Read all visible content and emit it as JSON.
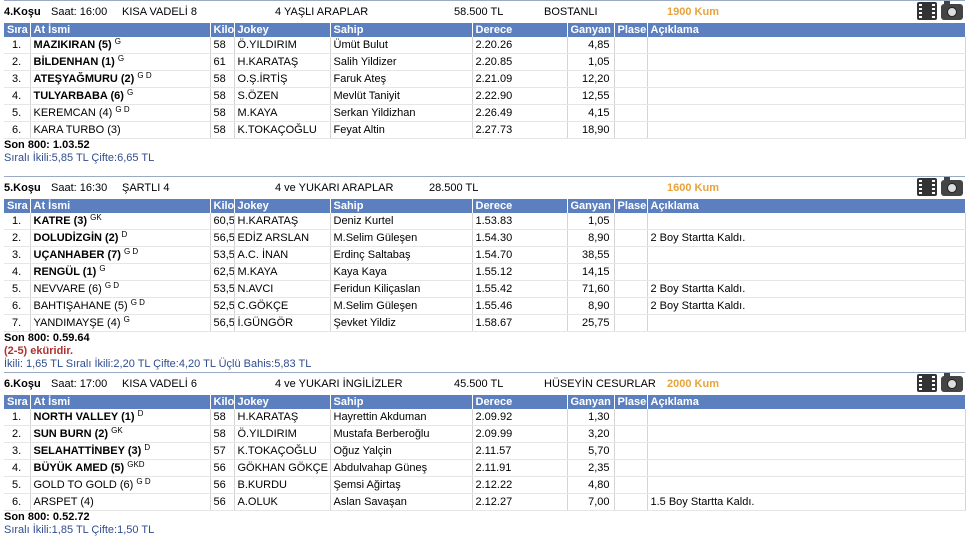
{
  "headers": [
    "Sıra",
    "At İsmi",
    "Kilo",
    "Jokey",
    "Sahip",
    "Derece",
    "Ganyan",
    "Plase",
    "Açıklama"
  ],
  "races": [
    {
      "title": "4.Koşu",
      "time": "Saat: 16:00",
      "type": "KISA VADELİ  8",
      "category": "4 YAŞLI ARAPLAR",
      "prize": "58.500 TL",
      "cup": "BOSTANLI",
      "distance": "1900 Kum",
      "rows": [
        {
          "no": "1.",
          "name": "MAZIKIRAN (5)",
          "sup": "G",
          "bold": true,
          "kilo": "58",
          "jockey": "Ö.YILDIRIM",
          "owner": "Ümüt Bulut",
          "time": "2.20.26",
          "ganyan": "4,85",
          "plase": "",
          "note": ""
        },
        {
          "no": "2.",
          "name": "BİLDENHAN (1)",
          "sup": "G",
          "bold": true,
          "kilo": "61",
          "jockey": "H.KARATAŞ",
          "owner": "Salih Yildizer",
          "time": "2.20.85",
          "ganyan": "1,05",
          "plase": "",
          "note": ""
        },
        {
          "no": "3.",
          "name": "ATEŞYAĞMURU (2)",
          "sup": "G D",
          "bold": true,
          "kilo": "58",
          "jockey": "O.Ş.İRTİŞ",
          "owner": "Faruk Ateş",
          "time": "2.21.09",
          "ganyan": "12,20",
          "plase": "",
          "note": ""
        },
        {
          "no": "4.",
          "name": "TULYARBABA (6)",
          "sup": "G",
          "bold": true,
          "kilo": "58",
          "jockey": "S.ÖZEN",
          "owner": "Mevlüt Taniyit",
          "time": "2.22.90",
          "ganyan": "12,55",
          "plase": "",
          "note": ""
        },
        {
          "no": "5.",
          "name": "KEREMCAN (4)",
          "sup": "G D",
          "bold": false,
          "kilo": "58",
          "jockey": "M.KAYA",
          "owner": "Serkan Yildizhan",
          "time": "2.26.49",
          "ganyan": "4,15",
          "plase": "",
          "note": ""
        },
        {
          "no": "6.",
          "name": "KARA TURBO (3)",
          "sup": "",
          "bold": false,
          "kilo": "58",
          "jockey": "K.TOKAÇOĞLU",
          "owner": "Feyat Altin",
          "time": "2.27.73",
          "ganyan": "18,90",
          "plase": "",
          "note": ""
        }
      ],
      "son": "Son 800: 1.03.52",
      "extra": "",
      "bets": "Sıralı İkili:5,85 TL Çifte:6,65 TL"
    },
    {
      "title": "5.Koşu",
      "time": "Saat: 16:30",
      "type": "ŞARTLI  4",
      "category": "4 ve YUKARI ARAPLAR",
      "prize": "28.500 TL",
      "cup": "",
      "distance": "1600 Kum",
      "rows": [
        {
          "no": "1.",
          "name": "KATRE (3)",
          "sup": "GK",
          "bold": true,
          "kilo": "60,5",
          "jockey": "H.KARATAŞ",
          "owner": "Deniz Kurtel",
          "time": "1.53.83",
          "ganyan": "1,05",
          "plase": "",
          "note": ""
        },
        {
          "no": "2.",
          "name": "DOLUDİZGİN (2)",
          "sup": "D",
          "bold": true,
          "kilo": "56,5",
          "jockey": "EDİZ ARSLAN",
          "owner": "M.Selim Güleşen",
          "time": "1.54.30",
          "ganyan": "8,90",
          "plase": "",
          "note": "2 Boy Startta Kaldı."
        },
        {
          "no": "3.",
          "name": "UÇANHABER (7)",
          "sup": "G D",
          "bold": true,
          "kilo": "53,5",
          "jockey": "A.C. İNAN",
          "owner": "Erdinç Saltabaş",
          "time": "1.54.70",
          "ganyan": "38,55",
          "plase": "",
          "note": ""
        },
        {
          "no": "4.",
          "name": "RENGÜL (1)",
          "sup": "G",
          "bold": true,
          "kilo": "62,5",
          "jockey": "M.KAYA",
          "owner": "Kaya Kaya",
          "time": "1.55.12",
          "ganyan": "14,15",
          "plase": "",
          "note": ""
        },
        {
          "no": "5.",
          "name": "NEVVARE (6)",
          "sup": "G D",
          "bold": false,
          "kilo": "53,5",
          "jockey": "N.AVCI",
          "owner": "Feridun Kiliçaslan",
          "time": "1.55.42",
          "ganyan": "71,60",
          "plase": "",
          "note": "2 Boy Startta Kaldı."
        },
        {
          "no": "6.",
          "name": "BAHTIŞAHANE (5)",
          "sup": "G D",
          "bold": false,
          "kilo": "52,5",
          "jockey": "C.GÖKÇE",
          "owner": "M.Selim Güleşen",
          "time": "1.55.46",
          "ganyan": "8,90",
          "plase": "",
          "note": "2 Boy Startta Kaldı."
        },
        {
          "no": "7.",
          "name": "YANDIMAYŞE (4)",
          "sup": "G",
          "bold": false,
          "kilo": "56,5",
          "jockey": "İ.GÜNGÖR",
          "owner": "Şevket Yildiz",
          "time": "1.58.67",
          "ganyan": "25,75",
          "plase": "",
          "note": ""
        }
      ],
      "son": "Son 800: 0.59.64",
      "extra": "(2-5) eküridir.",
      "bets": "İkili: 1,65 TL Sıralı İkili:2,20 TL Çifte:4,20 TL Üçlü Bahis:5,83 TL"
    },
    {
      "title": "6.Koşu",
      "time": "Saat: 17:00",
      "type": "KISA VADELİ  6",
      "category": "4 ve YUKARI İNGİLİZLER",
      "prize": "45.500 TL",
      "cup": "HÜSEYİN CESURLAR",
      "distance": "2000 Kum",
      "rows": [
        {
          "no": "1.",
          "name": "NORTH VALLEY (1)",
          "sup": "D",
          "bold": true,
          "kilo": "58",
          "jockey": "H.KARATAŞ",
          "owner": "Hayrettin Akduman",
          "time": "2.09.92",
          "ganyan": "1,30",
          "plase": "",
          "note": ""
        },
        {
          "no": "2.",
          "name": "SUN BURN (2)",
          "sup": "GK",
          "bold": true,
          "kilo": "58",
          "jockey": "Ö.YILDIRIM",
          "owner": "Mustafa Berberoğlu",
          "time": "2.09.99",
          "ganyan": "3,20",
          "plase": "",
          "note": ""
        },
        {
          "no": "3.",
          "name": "SELAHATTİNBEY (3)",
          "sup": "D",
          "bold": true,
          "kilo": "57",
          "jockey": "K.TOKAÇOĞLU",
          "owner": "Oğuz Yalçin",
          "time": "2.11.57",
          "ganyan": "5,70",
          "plase": "",
          "note": ""
        },
        {
          "no": "4.",
          "name": "BÜYÜK AMED (5)",
          "sup": "GKD",
          "bold": true,
          "kilo": "56",
          "jockey": "GÖKHAN GÖKÇE",
          "owner": "Abdulvahap Güneş",
          "time": "2.11.91",
          "ganyan": "2,35",
          "plase": "",
          "note": ""
        },
        {
          "no": "5.",
          "name": "GOLD TO GOLD (6)",
          "sup": "G D",
          "bold": false,
          "kilo": "56",
          "jockey": "B.KURDU",
          "owner": "Şemsi Ağirtaş",
          "time": "2.12.22",
          "ganyan": "4,80",
          "plase": "",
          "note": ""
        },
        {
          "no": "6.",
          "name": "ARSPET (4)",
          "sup": "",
          "bold": false,
          "kilo": "56",
          "jockey": "A.OLUK",
          "owner": "Aslan Savaşan",
          "time": "2.12.27",
          "ganyan": "7,00",
          "plase": "",
          "note": "1.5 Boy Startta Kaldı."
        }
      ],
      "son": "Son 800: 0.52.72",
      "extra": "",
      "bets": "Sıralı İkili:1,85 TL Çifte:1,50 TL"
    }
  ]
}
